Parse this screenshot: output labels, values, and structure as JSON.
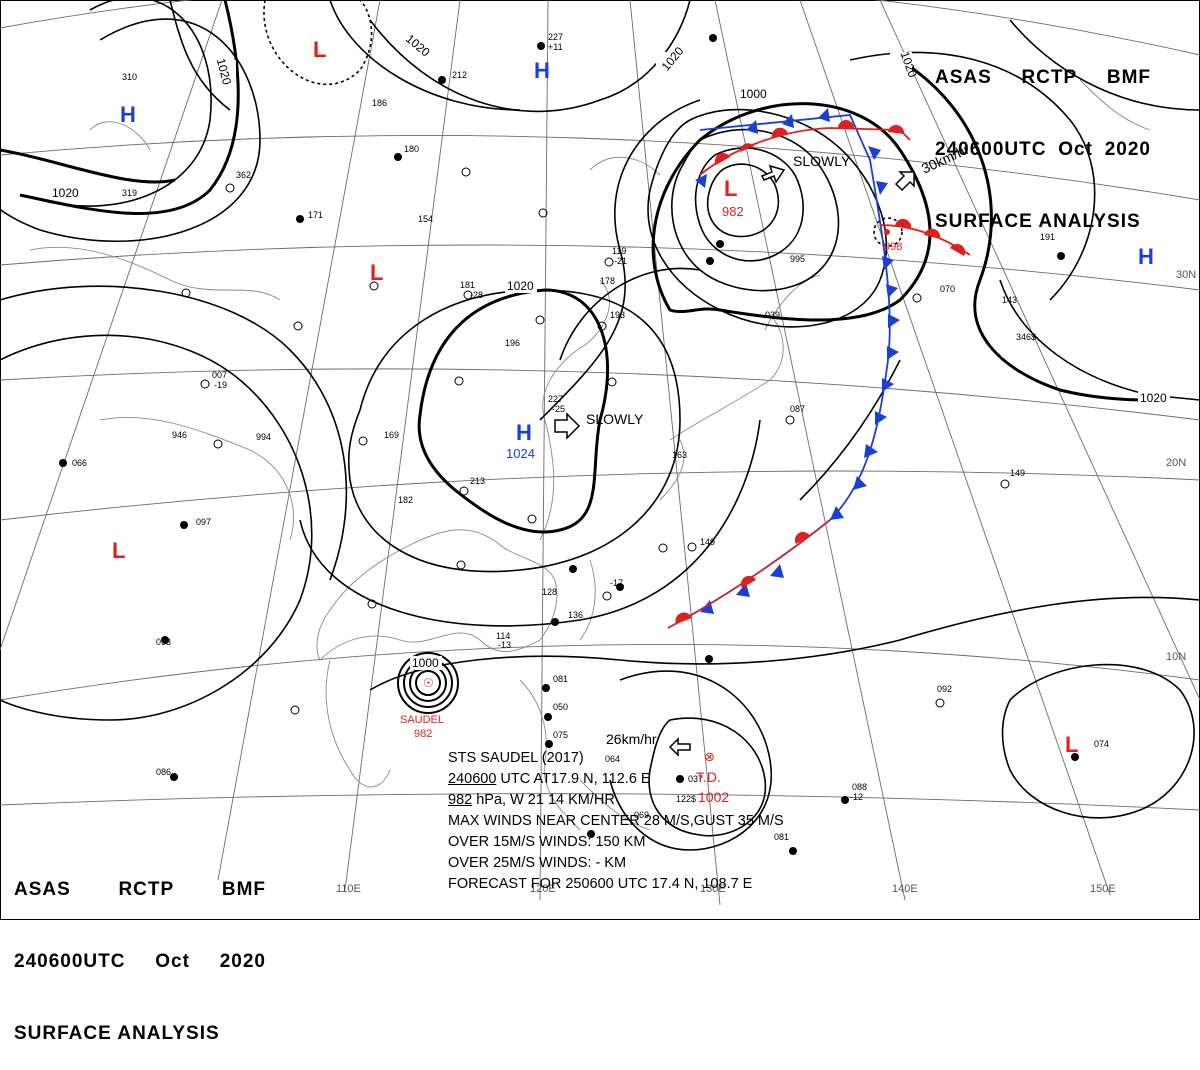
{
  "header": {
    "agency": "ASAS",
    "center": "RCTP",
    "bureau": "BMF",
    "timecode": "240600UTC",
    "month": "Oct",
    "year": "2020",
    "product": "SURFACE ANALYSIS"
  },
  "longitude_labels": [
    "110E",
    "120E",
    "130E",
    "140E",
    "150E"
  ],
  "latitude_labels": [
    "30N",
    "20N",
    "10N"
  ],
  "isobar_labels": [
    "1020",
    "1020",
    "1020",
    "1020",
    "1020",
    "1000",
    "1020",
    "1000"
  ],
  "pressure_systems": [
    {
      "type": "L",
      "color": "#e0201c",
      "value": ""
    },
    {
      "type": "L",
      "color": "#e0201c",
      "value": ""
    },
    {
      "type": "L",
      "color": "#e0201c",
      "value": ""
    },
    {
      "type": "L",
      "color": "#e0201c",
      "value": "982"
    },
    {
      "type": "L",
      "color": "#e0201c",
      "value": "998"
    },
    {
      "type": "L",
      "color": "#e0201c",
      "value": ""
    },
    {
      "type": "H",
      "color": "#1a3fd6",
      "value": ""
    },
    {
      "type": "H",
      "color": "#1a3fd6",
      "value": ""
    },
    {
      "type": "H",
      "color": "#1a3fd6",
      "value": "1024"
    },
    {
      "type": "H",
      "color": "#1a3fd6",
      "value": ""
    }
  ],
  "movement_labels": [
    "SLOWLY",
    "SLOWLY",
    "30km/hr",
    "26km/hr"
  ],
  "tropical": {
    "name": "SAUDEL",
    "pressure": "982",
    "td_label": "T.D.",
    "td_pressure": "1002"
  },
  "storm_info": {
    "line1": "STS  SAUDEL  (2017)",
    "line2_underlined": "240600",
    "line2_rest": " UTC  AT17.9 N, 112.6 E",
    "line3_underlined": "982",
    "line3_rest": " hPa, W  21  14 KM/HR",
    "line4": "MAX WINDS NEAR CENTER 28 M/S,GUST 35 M/S",
    "line5": "OVER 15M/S WINDS: 150 KM",
    "line6": "OVER 25M/S WINDS: - KM",
    "line7": "FORECAST FOR 250600 UTC  17.4 N, 108.7 E"
  },
  "station_samples": [
    "227",
    "+11",
    "212",
    "186",
    "180",
    "154",
    "171",
    "193",
    "196",
    "227",
    "-25",
    "181",
    "-28",
    "163",
    "149",
    "119",
    "-21",
    "995",
    "070",
    "143",
    "149",
    "097",
    "066",
    "946",
    "994",
    "007",
    "169",
    "213",
    "182",
    "128",
    "136",
    "114",
    "092",
    "093",
    "086",
    "088",
    "081",
    "074",
    "037",
    "050",
    "075",
    "081",
    "069",
    "064",
    "122$",
    "346$",
    "362",
    "191",
    "319",
    "310",
    "039",
    "178",
    "087",
    "-17",
    "-19",
    "-13",
    "-12"
  ],
  "colors": {
    "isobar": "#000000",
    "grid": "#6b6b6b",
    "coast": "#8a8a8a",
    "warm_front": "#e0201c",
    "cold_front": "#1a3fd6"
  }
}
